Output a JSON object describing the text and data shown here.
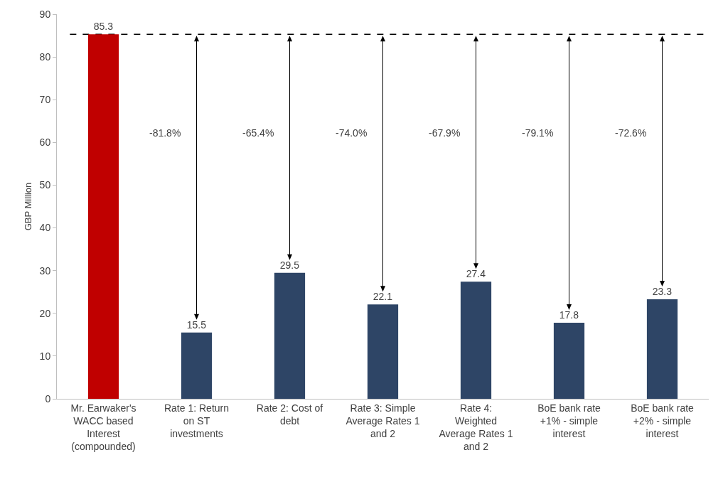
{
  "chart_data": {
    "type": "bar",
    "ylabel": "GBP Million",
    "categories": [
      "Mr. Earwaker's WACC based Interest (compounded)",
      "Rate 1: Return on ST investments",
      "Rate 2: Cost of debt",
      "Rate 3: Simple Average Rates 1 and 2",
      "Rate 4: Weighted Average Rates 1 and 2",
      "BoE bank rate +1% - simple interest",
      "BoE bank rate +2% - simple interest"
    ],
    "values": [
      85.3,
      15.5,
      29.5,
      22.1,
      27.4,
      17.8,
      23.3
    ],
    "colors": [
      "#c00000",
      "#2e4566",
      "#2e4566",
      "#2e4566",
      "#2e4566",
      "#2e4566",
      "#2e4566"
    ],
    "data_labels": true,
    "ylim": [
      0,
      90
    ],
    "yticks": [
      0,
      10,
      20,
      30,
      40,
      50,
      60,
      70,
      80,
      90
    ],
    "ref_lines": [
      {
        "axis": "y",
        "value": 85.3,
        "color": "#000000",
        "line_style": "dashed"
      }
    ],
    "annotations": [
      "-81.8%",
      "-65.4%",
      "-74.0%",
      "-67.9%",
      "-79.1%",
      "-72.6%"
    ]
  }
}
